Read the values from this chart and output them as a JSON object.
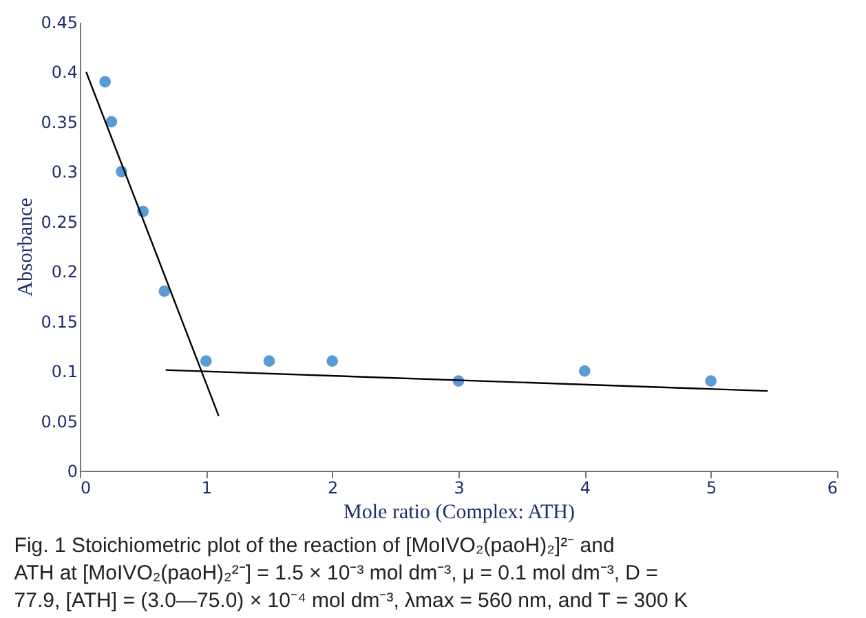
{
  "chart_data": {
    "type": "scatter",
    "xlabel": "Mole ratio (Complex: ATH)",
    "ylabel": "Absorbance",
    "series": [
      {
        "marker": "circle",
        "color": "#5b9bd5",
        "x": [
          0.2,
          0.25,
          0.33,
          0.5,
          0.67,
          1,
          1.5,
          2,
          3,
          4,
          5
        ],
        "values": [
          0.39,
          0.35,
          0.3,
          0.26,
          0.18,
          0.11,
          0.11,
          0.11,
          0.09,
          0.1,
          0.09
        ]
      },
      {
        "type": "line",
        "marker": "none",
        "color": "#000000",
        "x": [
          0.05,
          1.1
        ],
        "values": [
          0.4,
          0.055
        ]
      },
      {
        "type": "line",
        "marker": "none",
        "color": "#000000",
        "x": [
          0.68,
          5.45
        ],
        "values": [
          0.101,
          0.08
        ]
      }
    ],
    "xlim": [
      0,
      6
    ],
    "xticks": [
      0,
      1,
      2,
      3,
      4,
      5,
      6
    ],
    "ylim": [
      0,
      0.45
    ],
    "yticks": [
      0,
      0.05,
      0.1,
      0.15,
      0.2,
      0.25,
      0.3,
      0.35,
      0.4,
      0.45
    ],
    "grid": false,
    "annotations": [
      "Fig. 1  Stoichiometric plot of the reaction of [MoIVO₂(paoH)₂]²⁻ and ATH at [MoIVO₂(paoH)₂²⁻] = 1.5 × 10⁻³ mol dm⁻³, μ = 0.1 mol dm⁻³, D = 77.9, [ATH] = (3.0—75.0) × 10⁻⁴ mol dm⁻³, λmax = 560 nm, and T = 300 K"
    ]
  }
}
